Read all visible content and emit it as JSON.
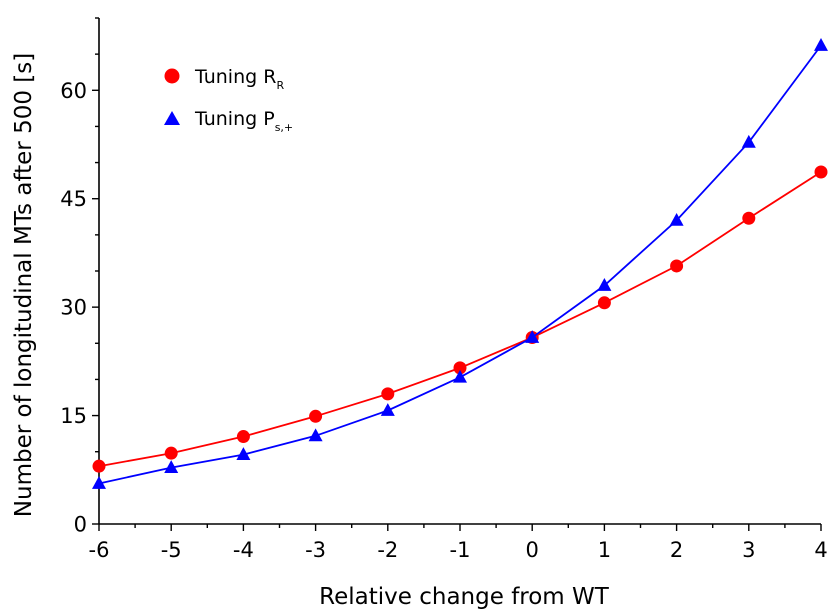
{
  "chart_data": {
    "type": "line",
    "title": "",
    "xlabel": "Relative change from WT",
    "ylabel": "Number of longitudinal MTs after 500 [s]",
    "x": [
      -6,
      -5,
      -4,
      -3,
      -2,
      -1,
      0,
      1,
      2,
      3,
      4
    ],
    "xticks": [
      -6,
      -5,
      -4,
      -3,
      -2,
      -1,
      0,
      1,
      2,
      3,
      4
    ],
    "yticks": [
      0,
      15,
      30,
      45,
      60
    ],
    "xlim": [
      -6,
      4
    ],
    "ylim": [
      0,
      70
    ],
    "grid": false,
    "legend_position": "top-left",
    "series": [
      {
        "legend_main": "Tuning R",
        "legend_sub": "R",
        "marker": "circle",
        "color": "#ff0000",
        "values": [
          8.0,
          9.8,
          12.1,
          14.9,
          18.0,
          21.6,
          25.8,
          30.6,
          35.7,
          42.3,
          48.7
        ]
      },
      {
        "legend_main": "Tuning P",
        "legend_sub": "s,+",
        "marker": "triangle",
        "color": "#0000ff",
        "values": [
          5.6,
          7.8,
          9.6,
          12.2,
          15.7,
          20.3,
          25.8,
          33.0,
          42.0,
          52.8,
          66.2
        ]
      }
    ]
  }
}
